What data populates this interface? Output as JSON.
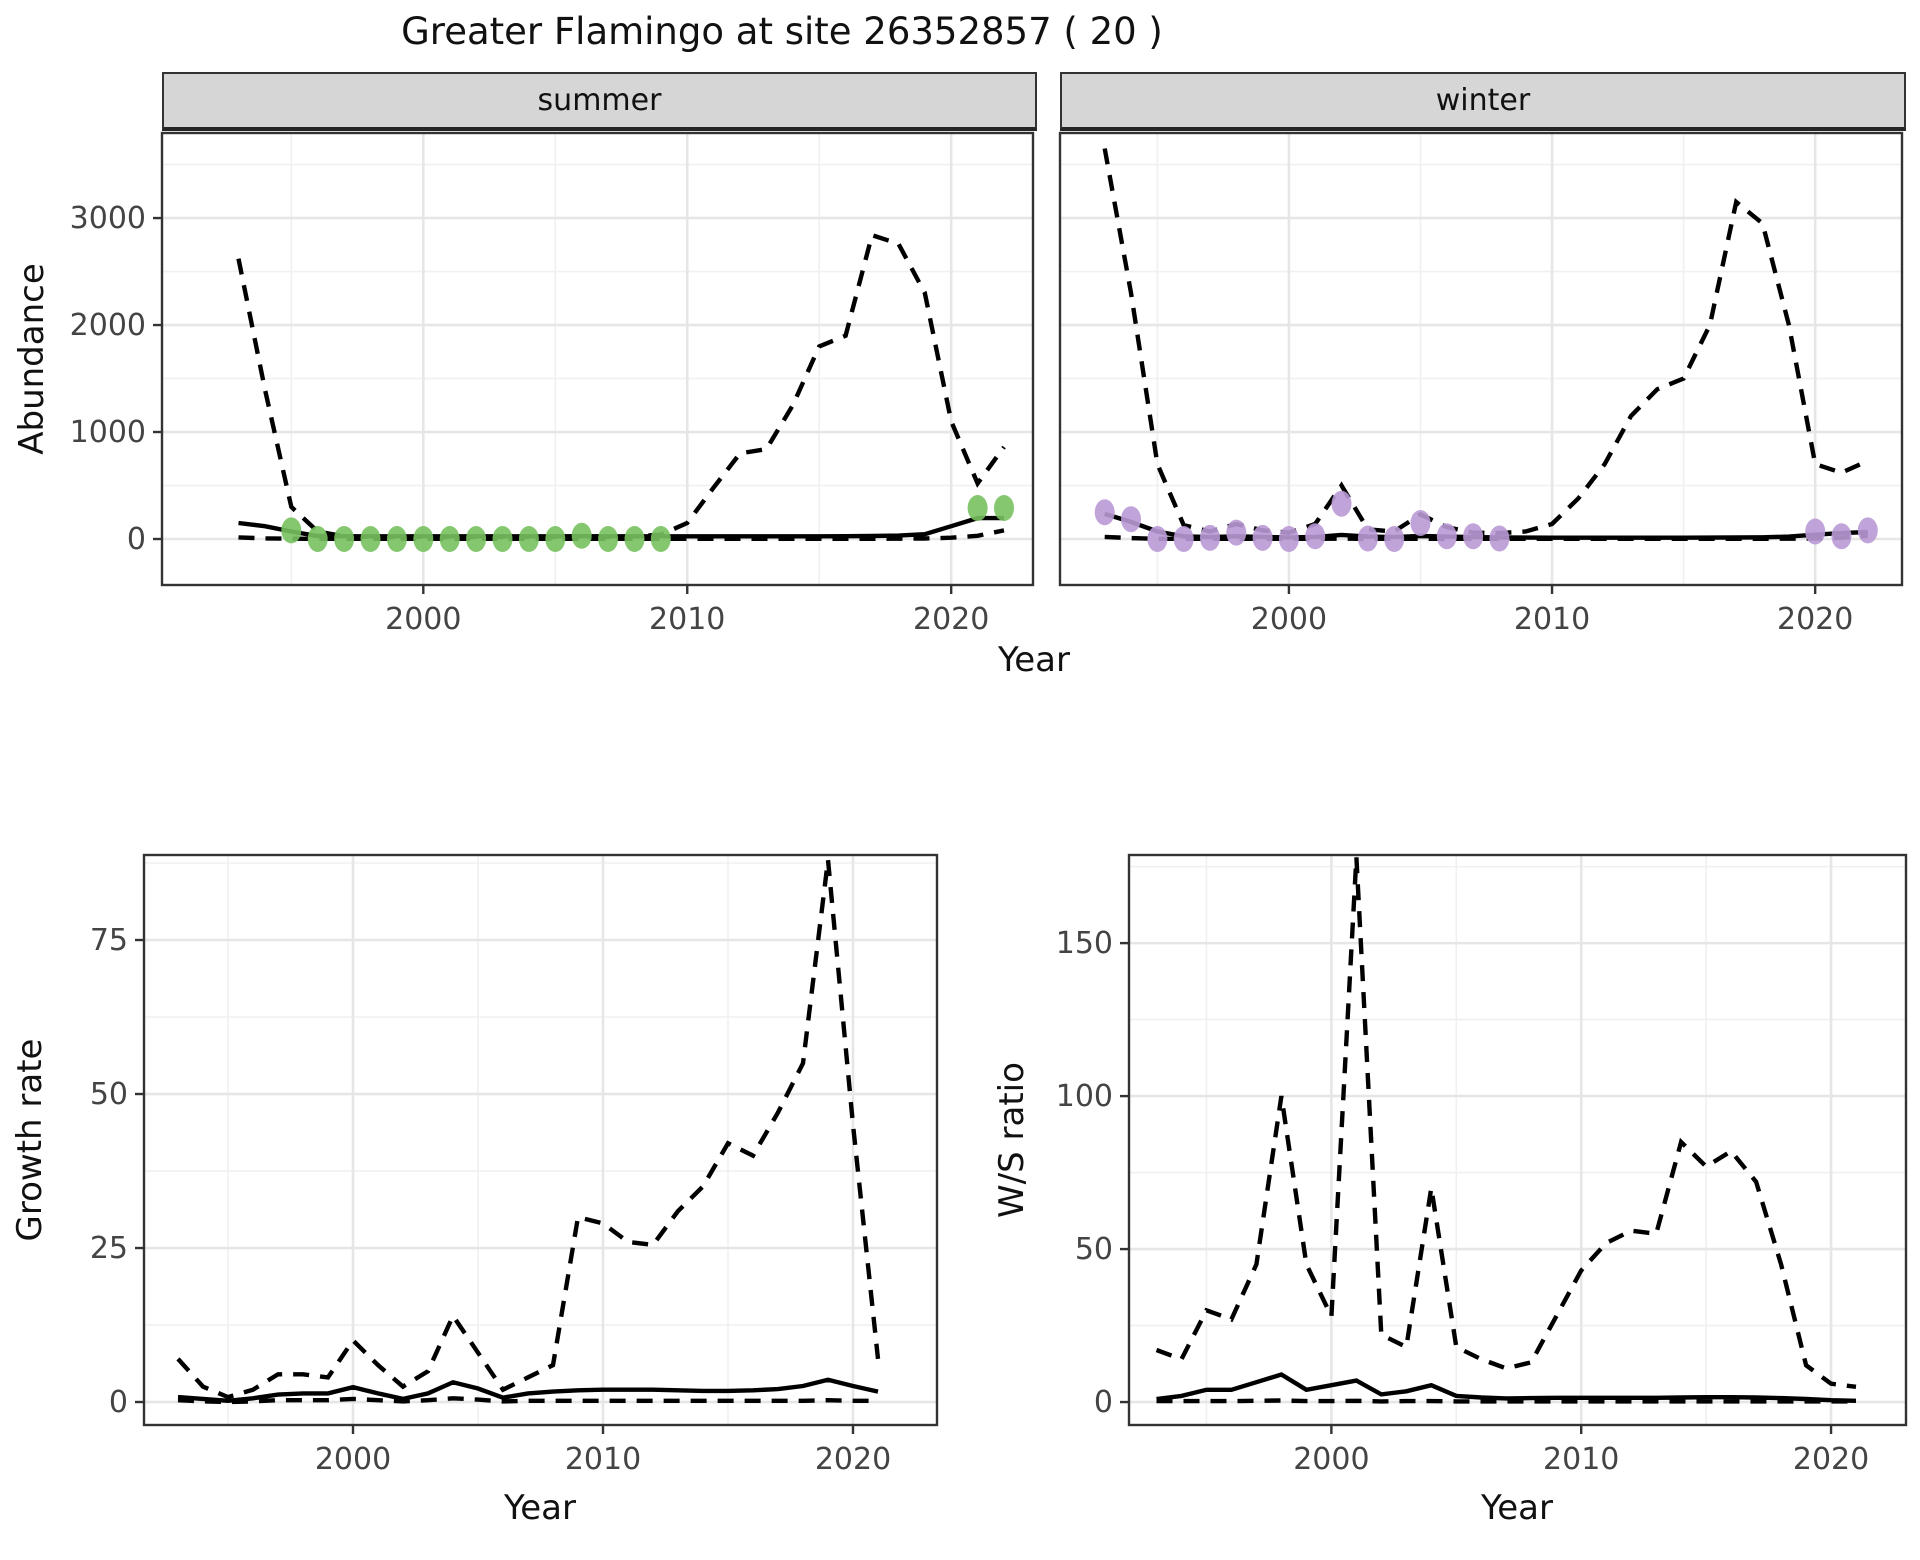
{
  "title": "Greater Flamingo at site 26352857 ( 20 )",
  "colors": {
    "summer_point": "#77C15F",
    "winter_point": "#B99AD5",
    "line": "#000000",
    "grid_major": "#E6E6E6",
    "grid_minor": "#F0F0F0",
    "strip_bg": "#D6D6D6",
    "panel_border": "#333333",
    "tick_label": "#444444",
    "text": "#111111"
  },
  "axes": {
    "abundance": "Abundance",
    "year": "Year",
    "growth_rate": "Growth rate",
    "ws_ratio": "W/S ratio"
  },
  "chart_data": [
    {
      "type": "line",
      "name": "abundance-summer",
      "facet": "summer",
      "xlabel": "Year",
      "ylabel": "Abundance",
      "x_ticks": [
        2000,
        2010,
        2020
      ],
      "x_minor": [
        1995,
        2005,
        2015
      ],
      "y_ticks": [
        0,
        1000,
        2000,
        3000
      ],
      "y_minor": [
        500,
        1500,
        2500,
        3500
      ],
      "xlim": [
        1990.1,
        2023.1
      ],
      "ylim": [
        -430,
        3795
      ],
      "grid": true,
      "legend": "none",
      "series": [
        {
          "name": "upper-ci",
          "style": "dashed",
          "x": [
            1993,
            1994,
            1995,
            1996,
            1997,
            1998,
            1999,
            2000,
            2001,
            2002,
            2003,
            2004,
            2005,
            2006,
            2007,
            2008,
            2009,
            2010,
            2011,
            2012,
            2013,
            2014,
            2015,
            2016,
            2017,
            2018,
            2019,
            2020,
            2021,
            2022
          ],
          "y": [
            2620,
            1400,
            300,
            70,
            25,
            20,
            20,
            20,
            20,
            20,
            20,
            20,
            20,
            25,
            20,
            25,
            40,
            150,
            480,
            800,
            840,
            1250,
            1800,
            1900,
            2840,
            2760,
            2300,
            1100,
            520,
            860
          ]
        },
        {
          "name": "fit",
          "style": "solid",
          "x": [
            1993,
            1994,
            1995,
            1996,
            1997,
            1998,
            1999,
            2000,
            2001,
            2002,
            2003,
            2004,
            2005,
            2006,
            2007,
            2008,
            2009,
            2010,
            2011,
            2012,
            2013,
            2014,
            2015,
            2016,
            2017,
            2018,
            2019,
            2020,
            2021,
            2022
          ],
          "y": [
            150,
            120,
            70,
            28,
            25,
            25,
            25,
            25,
            25,
            25,
            25,
            25,
            25,
            26,
            25,
            25,
            25,
            25,
            25,
            25,
            25,
            25,
            25,
            26,
            28,
            32,
            45,
            120,
            195,
            195
          ]
        },
        {
          "name": "lower-ci",
          "style": "dashed",
          "x": [
            1993,
            1994,
            1995,
            1996,
            1997,
            1998,
            1999,
            2000,
            2001,
            2002,
            2003,
            2004,
            2005,
            2006,
            2007,
            2008,
            2009,
            2010,
            2011,
            2012,
            2013,
            2014,
            2015,
            2016,
            2017,
            2018,
            2019,
            2020,
            2021,
            2022
          ],
          "y": [
            15,
            6,
            3,
            2,
            2,
            2,
            2,
            2,
            2,
            2,
            2,
            2,
            2,
            2,
            2,
            2,
            2,
            2,
            2,
            2,
            2,
            2,
            2,
            2,
            2,
            3,
            5,
            12,
            30,
            80
          ]
        }
      ],
      "points": {
        "name": "observed-counts",
        "color_key": "summer_point",
        "x": [
          1995,
          1996,
          1997,
          1998,
          1999,
          2000,
          2001,
          2002,
          2003,
          2004,
          2005,
          2006,
          2007,
          2008,
          2009,
          2021,
          2022
        ],
        "y": [
          80,
          0,
          0,
          0,
          0,
          0,
          0,
          0,
          0,
          0,
          0,
          30,
          0,
          0,
          0,
          290,
          290
        ]
      }
    },
    {
      "type": "line",
      "name": "abundance-winter",
      "facet": "winter",
      "xlabel": "Year",
      "ylabel": "Abundance",
      "x_ticks": [
        2000,
        2010,
        2020
      ],
      "x_minor": [
        1995,
        2005,
        2015
      ],
      "y_ticks": [
        0,
        1000,
        2000,
        3000
      ],
      "y_minor": [
        500,
        1500,
        2500,
        3500
      ],
      "xlim": [
        1991.3,
        2023.3
      ],
      "ylim": [
        -430,
        3795
      ],
      "grid": true,
      "legend": "none",
      "series": [
        {
          "name": "upper-ci",
          "style": "dashed",
          "x": [
            1993,
            1994,
            1995,
            1996,
            1997,
            1998,
            1999,
            2000,
            2001,
            2002,
            2003,
            2004,
            2005,
            2006,
            2007,
            2008,
            2009,
            2010,
            2011,
            2012,
            2013,
            2014,
            2015,
            2016,
            2017,
            2018,
            2019,
            2020,
            2021,
            2022
          ],
          "y": [
            3650,
            2300,
            700,
            130,
            70,
            140,
            80,
            60,
            140,
            500,
            90,
            70,
            230,
            110,
            60,
            55,
            70,
            140,
            380,
            700,
            1150,
            1400,
            1500,
            2000,
            3150,
            2950,
            2000,
            700,
            620,
            730
          ]
        },
        {
          "name": "fit",
          "style": "solid",
          "x": [
            1993,
            1994,
            1995,
            1996,
            1997,
            1998,
            1999,
            2000,
            2001,
            2002,
            2003,
            2004,
            2005,
            2006,
            2007,
            2008,
            2009,
            2010,
            2011,
            2012,
            2013,
            2014,
            2015,
            2016,
            2017,
            2018,
            2019,
            2020,
            2021,
            2022
          ],
          "y": [
            235,
            160,
            70,
            25,
            18,
            25,
            20,
            15,
            20,
            38,
            22,
            18,
            28,
            22,
            18,
            15,
            13,
            12,
            12,
            12,
            12,
            12,
            12,
            13,
            14,
            16,
            22,
            40,
            55,
            65
          ]
        },
        {
          "name": "lower-ci",
          "style": "dashed",
          "x": [
            1993,
            1994,
            1995,
            1996,
            1997,
            1998,
            1999,
            2000,
            2001,
            2002,
            2003,
            2004,
            2005,
            2006,
            2007,
            2008,
            2009,
            2010,
            2011,
            2012,
            2013,
            2014,
            2015,
            2016,
            2017,
            2018,
            2019,
            2020,
            2021,
            2022
          ],
          "y": [
            20,
            8,
            2,
            2,
            2,
            2,
            2,
            2,
            2,
            3,
            2,
            2,
            2,
            2,
            2,
            2,
            2,
            2,
            2,
            2,
            2,
            2,
            2,
            2,
            2,
            2,
            3,
            6,
            12,
            30
          ]
        }
      ],
      "points": {
        "name": "observed-counts",
        "color_key": "winter_point",
        "x": [
          1993,
          1994,
          1995,
          1996,
          1997,
          1998,
          1999,
          2000,
          2001,
          2002,
          2003,
          2004,
          2005,
          2006,
          2007,
          2008,
          2020,
          2021,
          2022
        ],
        "y": [
          250,
          185,
          0,
          0,
          10,
          60,
          10,
          0,
          25,
          330,
          5,
          0,
          150,
          25,
          25,
          5,
          70,
          25,
          80
        ]
      }
    },
    {
      "type": "line",
      "name": "growth-rate",
      "facet": "",
      "xlabel": "Year",
      "ylabel": "Growth rate",
      "x_ticks": [
        2000,
        2010,
        2020
      ],
      "x_minor": [
        1995,
        2005,
        2015
      ],
      "y_ticks": [
        0,
        25,
        50,
        75
      ],
      "y_minor": [
        12.5,
        37.5,
        62.5,
        87.5
      ],
      "xlim": [
        1991.64,
        2023.36
      ],
      "ylim": [
        -3.73,
        88.8
      ],
      "grid": true,
      "legend": "none",
      "series": [
        {
          "name": "upper-ci",
          "style": "dashed",
          "x": [
            1993,
            1994,
            1995,
            1996,
            1997,
            1998,
            1999,
            2000,
            2001,
            2002,
            2003,
            2004,
            2005,
            2006,
            2007,
            2008,
            2009,
            2010,
            2011,
            2012,
            2013,
            2014,
            2015,
            2016,
            2017,
            2018,
            2019,
            2020,
            2021
          ],
          "y": [
            7,
            2.5,
            0.8,
            2,
            4.5,
            4.5,
            4,
            10,
            6,
            2.5,
            5,
            14,
            8,
            2,
            4,
            6,
            30,
            29,
            26,
            25.5,
            31,
            35,
            42,
            40,
            47,
            55,
            88,
            45,
            7
          ]
        },
        {
          "name": "fit",
          "style": "solid",
          "x": [
            1993,
            1994,
            1995,
            1996,
            1997,
            1998,
            1999,
            2000,
            2001,
            2002,
            2003,
            2004,
            2005,
            2006,
            2007,
            2008,
            2009,
            2010,
            2011,
            2012,
            2013,
            2014,
            2015,
            2016,
            2017,
            2018,
            2019,
            2020,
            2021
          ],
          "y": [
            0.8,
            0.5,
            0.2,
            0.6,
            1.2,
            1.4,
            1.4,
            2.4,
            1.4,
            0.5,
            1.4,
            3.2,
            2.2,
            0.7,
            1.4,
            1.7,
            1.9,
            2,
            2,
            2,
            1.9,
            1.8,
            1.8,
            1.9,
            2.1,
            2.6,
            3.6,
            2.6,
            1.7
          ]
        },
        {
          "name": "lower-ci",
          "style": "dashed",
          "x": [
            1993,
            1994,
            1995,
            1996,
            1997,
            1998,
            1999,
            2000,
            2001,
            2002,
            2003,
            2004,
            2005,
            2006,
            2007,
            2008,
            2009,
            2010,
            2011,
            2012,
            2013,
            2014,
            2015,
            2016,
            2017,
            2018,
            2019,
            2020,
            2021
          ],
          "y": [
            0.3,
            0.1,
            0,
            0.1,
            0.3,
            0.3,
            0.3,
            0.5,
            0.3,
            0.1,
            0.3,
            0.6,
            0.4,
            0.1,
            0.2,
            0.2,
            0.2,
            0.2,
            0.2,
            0.2,
            0.2,
            0.2,
            0.2,
            0.2,
            0.2,
            0.2,
            0.3,
            0.2,
            0.2
          ]
        }
      ],
      "points": null
    },
    {
      "type": "line",
      "name": "ws-ratio",
      "facet": "",
      "xlabel": "Year",
      "ylabel": "W/S ratio",
      "x_ticks": [
        2000,
        2010,
        2020
      ],
      "x_minor": [
        1995,
        2005,
        2015
      ],
      "y_ticks": [
        0,
        50,
        100,
        150
      ],
      "y_minor": [
        25,
        75,
        125,
        175
      ],
      "xlim": [
        1991.9,
        2023.0
      ],
      "ylim": [
        -7.5,
        178.8
      ],
      "grid": true,
      "legend": "none",
      "series": [
        {
          "name": "upper-ci",
          "style": "dashed",
          "x": [
            1993,
            1994,
            1995,
            1996,
            1997,
            1998,
            1999,
            2000,
            2001,
            2002,
            2003,
            2004,
            2005,
            2006,
            2007,
            2008,
            2009,
            2010,
            2011,
            2012,
            2013,
            2014,
            2015,
            2016,
            2017,
            2018,
            2019,
            2020,
            2021
          ],
          "y": [
            17,
            14,
            30,
            27,
            45,
            100,
            45,
            28,
            178,
            22,
            18,
            70,
            18,
            14,
            11,
            13,
            28,
            43,
            52,
            56,
            55,
            85,
            77,
            82,
            72,
            45,
            12,
            6,
            5
          ]
        },
        {
          "name": "fit",
          "style": "solid",
          "x": [
            1993,
            1994,
            1995,
            1996,
            1997,
            1998,
            1999,
            2000,
            2001,
            2002,
            2003,
            2004,
            2005,
            2006,
            2007,
            2008,
            2009,
            2010,
            2011,
            2012,
            2013,
            2014,
            2015,
            2016,
            2017,
            2018,
            2019,
            2020,
            2021
          ],
          "y": [
            1,
            2,
            4,
            4,
            6.5,
            9,
            4,
            5.5,
            7,
            2.5,
            3.5,
            5.5,
            2,
            1.5,
            1.2,
            1.3,
            1.4,
            1.4,
            1.4,
            1.4,
            1.4,
            1.5,
            1.6,
            1.6,
            1.5,
            1.3,
            1,
            0.6,
            0.4
          ]
        },
        {
          "name": "lower-ci",
          "style": "dashed",
          "x": [
            1993,
            1994,
            1995,
            1996,
            1997,
            1998,
            1999,
            2000,
            2001,
            2002,
            2003,
            2004,
            2005,
            2006,
            2007,
            2008,
            2009,
            2010,
            2011,
            2012,
            2013,
            2014,
            2015,
            2016,
            2017,
            2018,
            2019,
            2020,
            2021
          ],
          "y": [
            0.3,
            0.3,
            0.3,
            0.3,
            0.4,
            0.5,
            0.3,
            0.3,
            0.4,
            0.2,
            0.3,
            0.3,
            0.2,
            0.2,
            0.2,
            0.2,
            0.2,
            0.2,
            0.2,
            0.2,
            0.2,
            0.2,
            0.2,
            0.2,
            0.2,
            0.2,
            0.2,
            0.2,
            0.2
          ]
        }
      ],
      "points": null
    }
  ]
}
